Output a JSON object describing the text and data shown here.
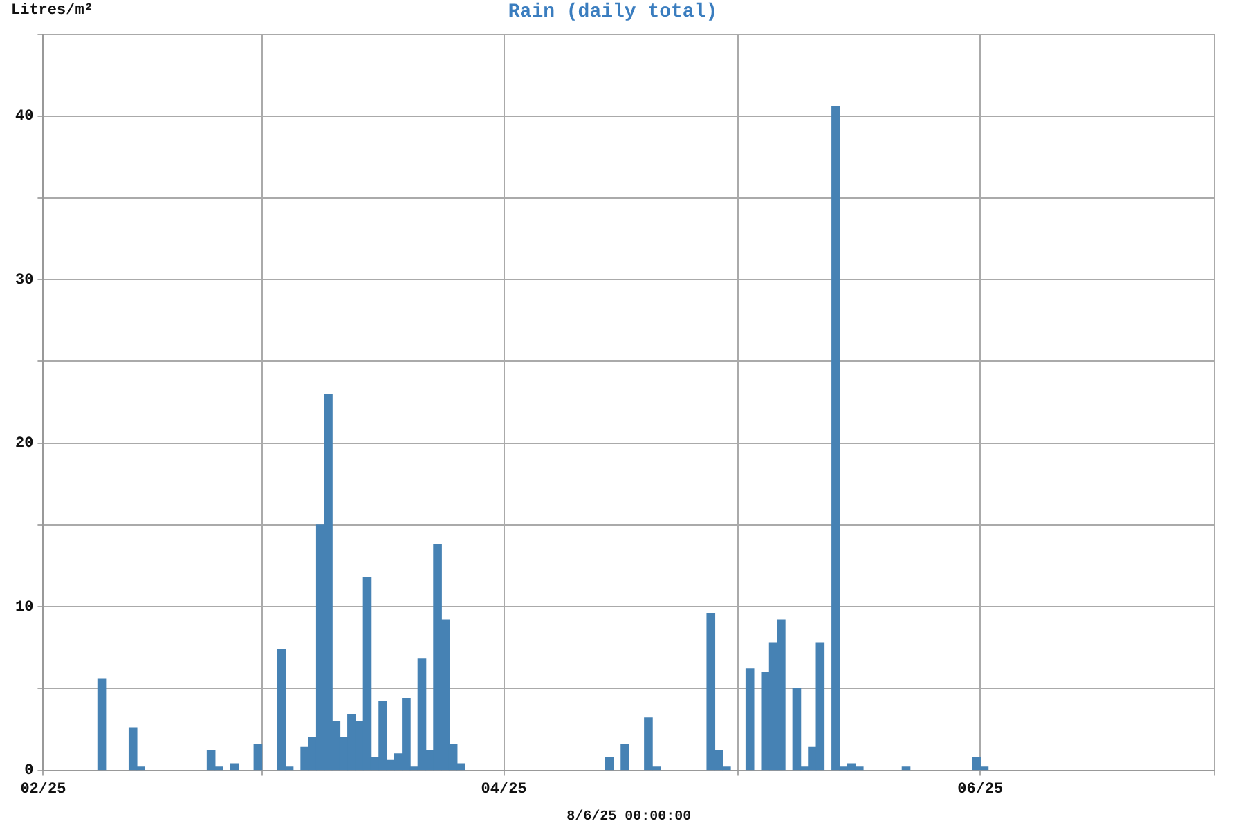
{
  "chart_data": {
    "type": "bar",
    "title": "Rain (daily total)",
    "ylabel": "Litres/m²",
    "xlabel": "8/6/25 00:00:00",
    "x": [
      "2025-02-08",
      "2025-02-12",
      "2025-02-13",
      "2025-02-22",
      "2025-02-23",
      "2025-02-25",
      "2025-02-28",
      "2025-03-03",
      "2025-03-04",
      "2025-03-06",
      "2025-03-07",
      "2025-03-08",
      "2025-03-09",
      "2025-03-10",
      "2025-03-11",
      "2025-03-12",
      "2025-03-13",
      "2025-03-14",
      "2025-03-15",
      "2025-03-16",
      "2025-03-17",
      "2025-03-18",
      "2025-03-19",
      "2025-03-20",
      "2025-03-21",
      "2025-03-22",
      "2025-03-23",
      "2025-03-24",
      "2025-03-25",
      "2025-03-26",
      "2025-04-14",
      "2025-04-16",
      "2025-04-19",
      "2025-04-20",
      "2025-04-27",
      "2025-04-28",
      "2025-04-29",
      "2025-05-02",
      "2025-05-04",
      "2025-05-05",
      "2025-05-06",
      "2025-05-08",
      "2025-05-09",
      "2025-05-10",
      "2025-05-11",
      "2025-05-13",
      "2025-05-14",
      "2025-05-15",
      "2025-05-16",
      "2025-05-22",
      "2025-05-31",
      "2025-06-01"
    ],
    "values": [
      5.6,
      2.6,
      0.2,
      1.2,
      0.2,
      0.4,
      1.6,
      7.4,
      0.2,
      1.4,
      2.0,
      15.0,
      23.0,
      3.0,
      2.0,
      3.4,
      3.0,
      11.8,
      0.8,
      4.2,
      0.6,
      1.0,
      4.4,
      0.2,
      6.8,
      1.2,
      13.8,
      9.2,
      1.6,
      0.4,
      0.8,
      1.6,
      3.2,
      0.2,
      9.6,
      1.2,
      0.2,
      6.2,
      6.0,
      7.8,
      9.2,
      5.0,
      0.2,
      1.4,
      7.8,
      40.6,
      0.2,
      0.4,
      0.2,
      0.2,
      0.8,
      0.2
    ],
    "color": "#4682b4",
    "xlim": [
      "2025-02-01",
      "2025-07-01"
    ],
    "xticks": [
      {
        "value": "2025-02-01",
        "label": "02/25"
      },
      {
        "value": "2025-03-01",
        "label": null
      },
      {
        "value": "2025-04-01",
        "label": "04/25"
      },
      {
        "value": "2025-05-01",
        "label": null
      },
      {
        "value": "2025-06-01",
        "label": "06/25"
      },
      {
        "value": "2025-07-01",
        "label": null
      }
    ],
    "ylim": [
      0,
      45
    ],
    "yticks": [
      0,
      {
        "value": 5,
        "label": null
      },
      10,
      {
        "value": 15,
        "label": null
      },
      20,
      {
        "value": 25,
        "label": null
      },
      30,
      {
        "value": 35,
        "label": null
      },
      40,
      {
        "value": 45,
        "label": null
      }
    ],
    "grid": true
  }
}
